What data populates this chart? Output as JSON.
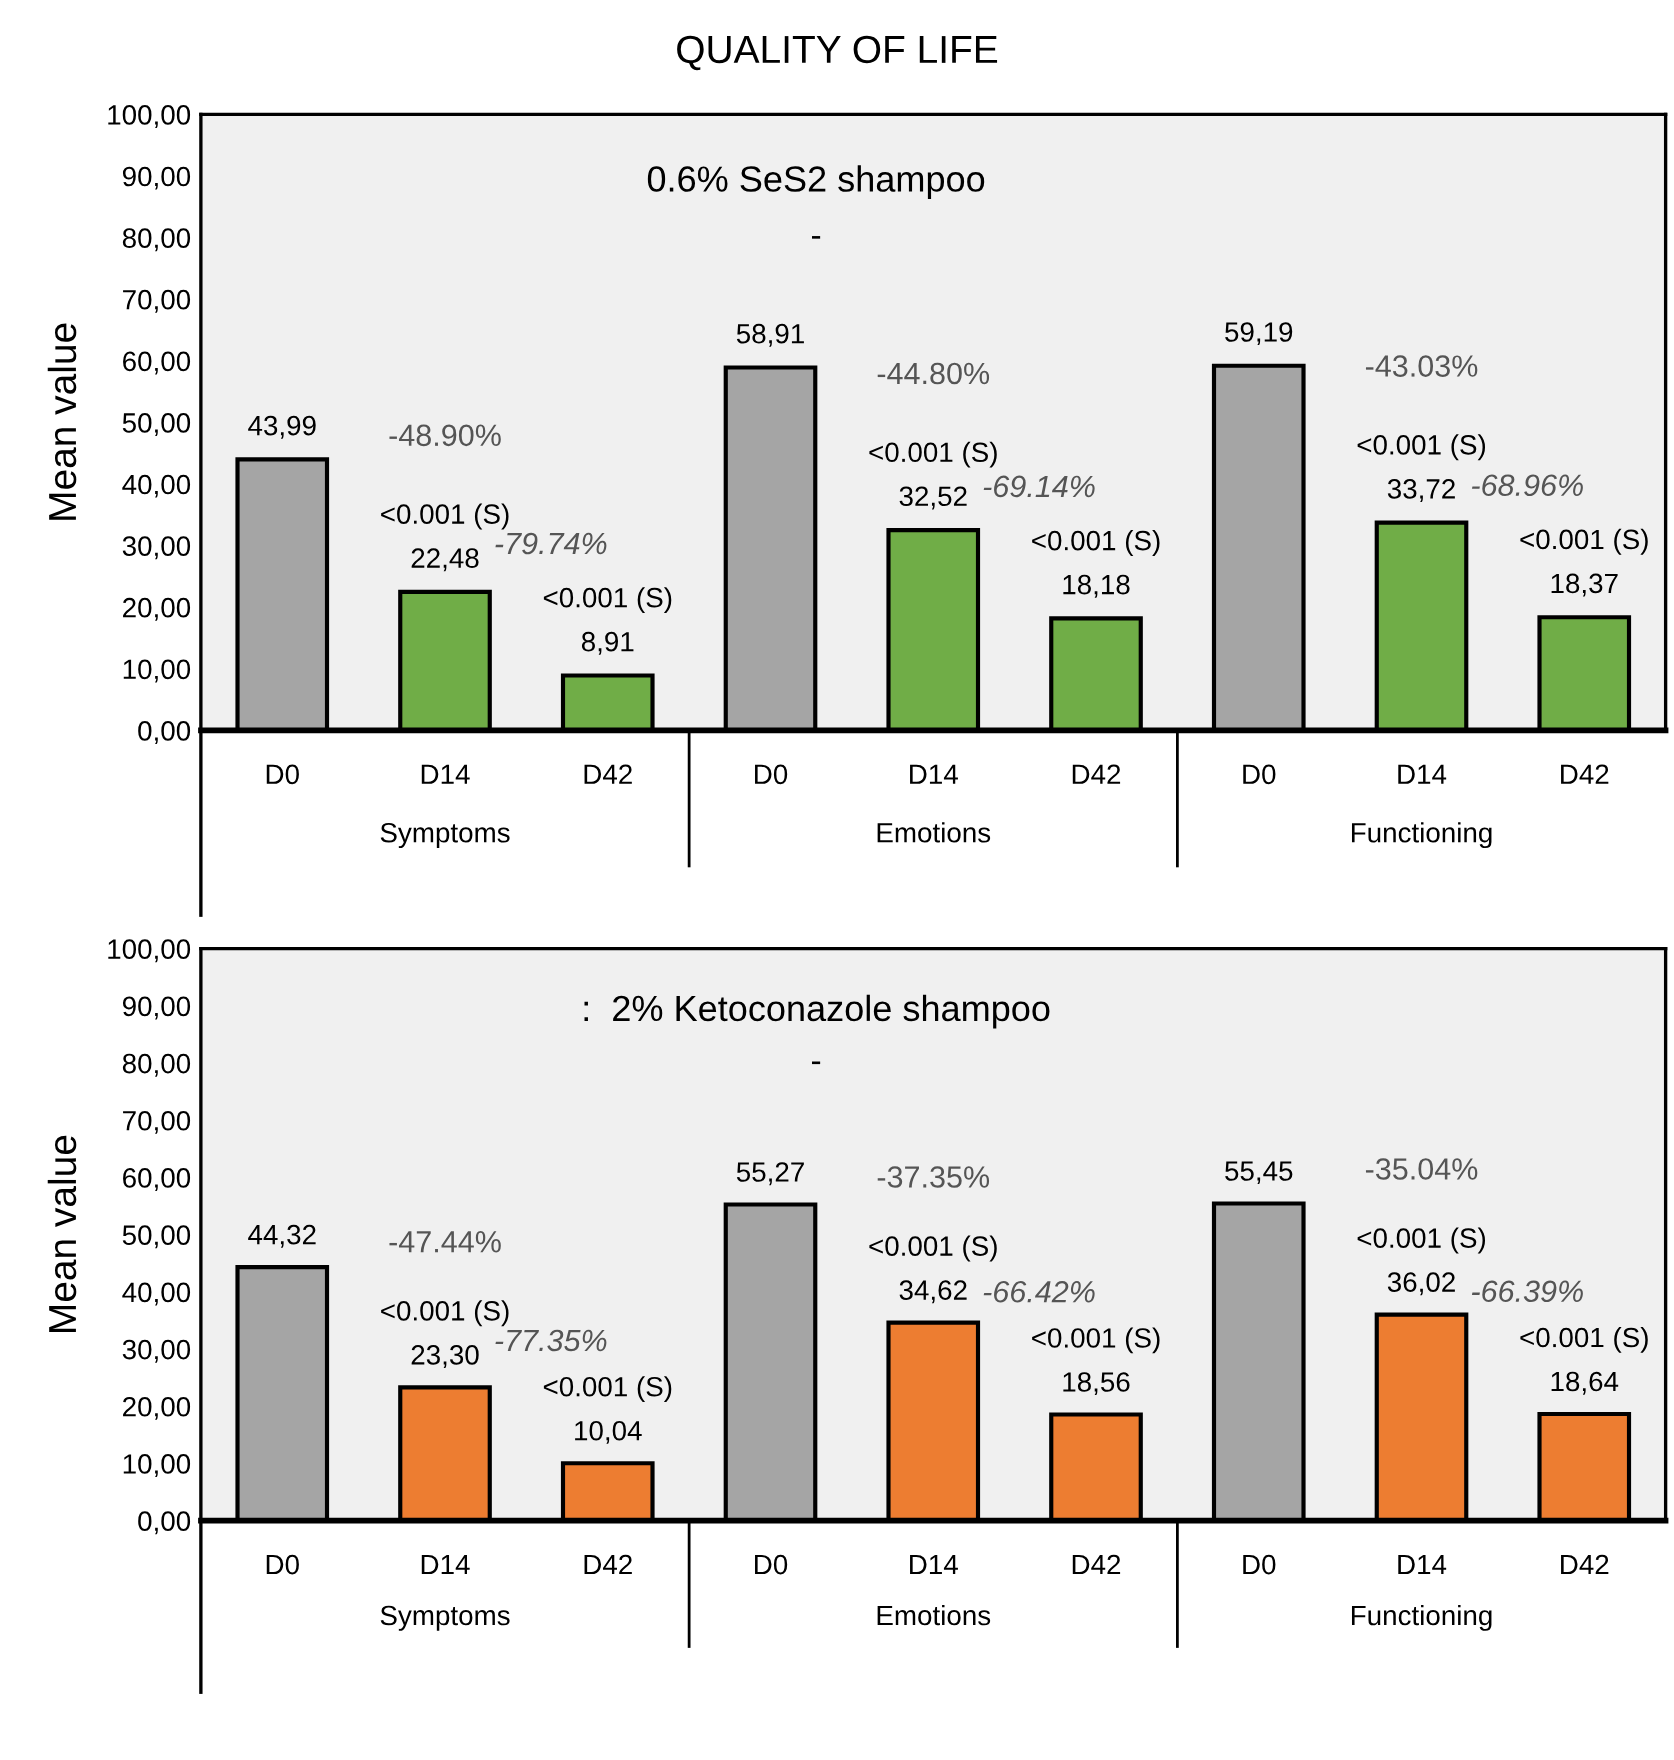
{
  "chart_data": [
    {
      "type": "bar",
      "title": "QUALITY OF LIFE",
      "subtitle": "0.6% SeS2 shampoo",
      "ylabel": "Mean value",
      "categories": [
        "D0",
        "D14",
        "D42",
        "D0",
        "D14",
        "D42",
        "D0",
        "D14",
        "D42"
      ],
      "values": [
        43.99,
        22.48,
        8.91,
        58.91,
        32.52,
        18.18,
        59.19,
        33.72,
        18.37
      ],
      "colors": [
        "#a5a5a5",
        "#70ad47",
        "#70ad47",
        "#a5a5a5",
        "#70ad47",
        "#70ad47",
        "#a5a5a5",
        "#70ad47",
        "#70ad47"
      ],
      "value_labels": [
        "43,99",
        "<0.001 (S)\n22,48",
        "<0.001 (S)\n8,91",
        "58,91",
        "<0.001 (S)\n32,52",
        "<0.001 (S)\n18,18",
        "59,19",
        "<0.001 (S)\n33,72",
        "<0.001 (S)\n18,37"
      ],
      "annotations": [
        "-48.90%",
        "-79.74%",
        "-44.80%",
        "-69.14%",
        "-43.03%",
        "-68.96%",
        "-",
        "Symptoms",
        "Emotions",
        "Functioning"
      ],
      "ylim": [
        0,
        100
      ],
      "yticks": [
        {
          "value": 0,
          "label": "0,00"
        },
        {
          "value": 10,
          "label": "10,00"
        },
        {
          "value": 20,
          "label": "20,00"
        },
        {
          "value": 30,
          "label": "30,00"
        },
        {
          "value": 40,
          "label": "40,00"
        },
        {
          "value": 50,
          "label": "50,00"
        },
        {
          "value": 60,
          "label": "60,00"
        },
        {
          "value": 70,
          "label": "70,00"
        },
        {
          "value": 80,
          "label": "80,00"
        },
        {
          "value": 90,
          "label": "90,00"
        },
        {
          "value": 100,
          "label": "100,00"
        }
      ],
      "grid": false,
      "legend": false
    },
    {
      "type": "bar",
      "subtitle": ":  2% Ketoconazole shampoo",
      "ylabel": "Mean value",
      "categories": [
        "D0",
        "D14",
        "D42",
        "D0",
        "D14",
        "D42",
        "D0",
        "D14",
        "D42"
      ],
      "values": [
        44.32,
        23.3,
        10.04,
        55.27,
        34.62,
        18.56,
        55.45,
        36.02,
        18.64
      ],
      "colors": [
        "#a5a5a5",
        "#ed7d31",
        "#ed7d31",
        "#a5a5a5",
        "#ed7d31",
        "#ed7d31",
        "#a5a5a5",
        "#ed7d31",
        "#ed7d31"
      ],
      "value_labels": [
        "44,32",
        "<0.001 (S)\n23,30",
        "<0.001 (S)\n10,04",
        "55,27",
        "<0.001 (S)\n34,62",
        "<0.001 (S)\n18,56",
        "55,45",
        "<0.001 (S)\n36,02",
        "<0.001 (S)\n18,64"
      ],
      "annotations": [
        "-47.44%",
        "-77.35%",
        "-37.35%",
        "-66.42%",
        "-35.04%",
        "-66.39%",
        "-",
        "Symptoms",
        "Emotions",
        "Functioning"
      ],
      "ylim": [
        0,
        100
      ],
      "yticks": [
        {
          "value": 0,
          "label": "0,00"
        },
        {
          "value": 10,
          "label": "10,00"
        },
        {
          "value": 20,
          "label": "20,00"
        },
        {
          "value": 30,
          "label": "30,00"
        },
        {
          "value": 40,
          "label": "40,00"
        },
        {
          "value": 50,
          "label": "50,00"
        },
        {
          "value": 60,
          "label": "60,00"
        },
        {
          "value": 70,
          "label": "70,00"
        },
        {
          "value": 80,
          "label": "80,00"
        },
        {
          "value": 90,
          "label": "90,00"
        },
        {
          "value": 100,
          "label": "100,00"
        }
      ],
      "grid": false,
      "legend": false
    }
  ]
}
